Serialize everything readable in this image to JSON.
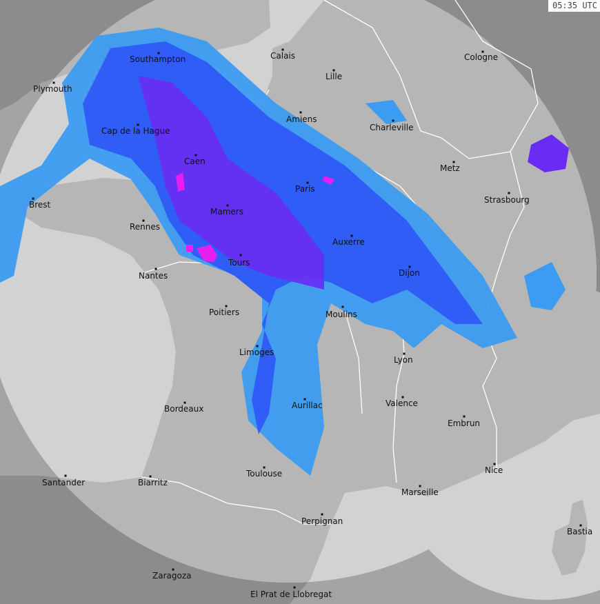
{
  "timestamp": "05:35 UTC",
  "colors": {
    "sea_covered": "#d2d2d2",
    "land_covered": "#b6b6b6",
    "sea_outside": "#a4a4a4",
    "land_outside": "#8c8c8c",
    "rain_light": "#3c9cf2",
    "rain_moderate": "#2f5df6",
    "rain_heavy": "#6a2cf2",
    "rain_intense": "#e61ff0",
    "borders": "#ffffff"
  },
  "cities": [
    {
      "name": "Southampton"
    },
    {
      "name": "Calais"
    },
    {
      "name": "Lille"
    },
    {
      "name": "Cologne"
    },
    {
      "name": "Plymouth"
    },
    {
      "name": "Amiens"
    },
    {
      "name": "Charleville"
    },
    {
      "name": "Cap de la Hague"
    },
    {
      "name": "Caen"
    },
    {
      "name": "Metz"
    },
    {
      "name": "Brest"
    },
    {
      "name": "Paris"
    },
    {
      "name": "Strasbourg"
    },
    {
      "name": "Mamers"
    },
    {
      "name": "Rennes"
    },
    {
      "name": "Auxerre"
    },
    {
      "name": "Tours"
    },
    {
      "name": "Dijon"
    },
    {
      "name": "Nantes"
    },
    {
      "name": "Poitiers"
    },
    {
      "name": "Moulins"
    },
    {
      "name": "Limoges"
    },
    {
      "name": "Lyon"
    },
    {
      "name": "Aurillac"
    },
    {
      "name": "Valence"
    },
    {
      "name": "Bordeaux"
    },
    {
      "name": "Embrun"
    },
    {
      "name": "Toulouse"
    },
    {
      "name": "Nice"
    },
    {
      "name": "Santander"
    },
    {
      "name": "Biarritz"
    },
    {
      "name": "Marseille"
    },
    {
      "name": "Perpignan"
    },
    {
      "name": "Bastia"
    },
    {
      "name": "Zaragoza"
    },
    {
      "name": "El Prat de Llobregat"
    }
  ]
}
